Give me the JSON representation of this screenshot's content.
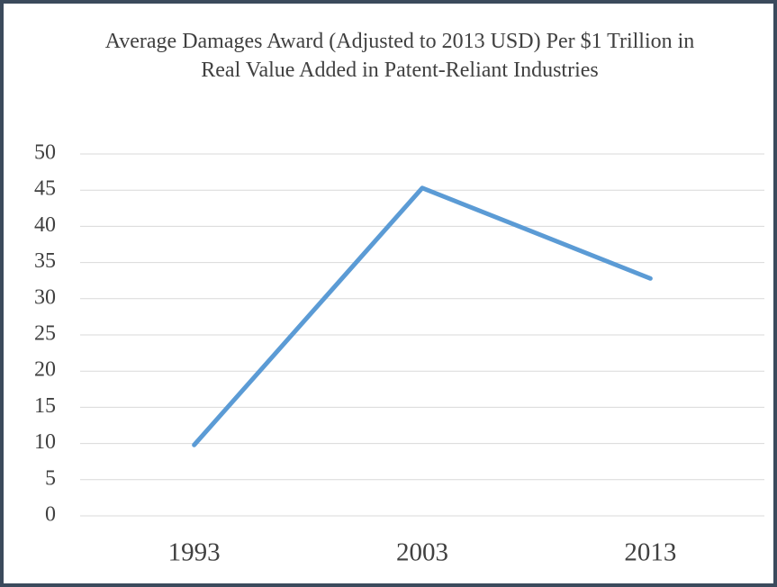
{
  "chart_data": {
    "type": "line",
    "title": "Average Damages Award (Adjusted to 2013 USD) Per $1 Trillion in Real Value Added in Patent-Reliant Industries",
    "categories": [
      "1993",
      "2003",
      "2013"
    ],
    "values": [
      9.8,
      45.3,
      32.8
    ],
    "color": "#5b9bd5",
    "ylim": [
      0,
      50
    ],
    "yticks": [
      0,
      5,
      10,
      15,
      20,
      25,
      30,
      35,
      40,
      45,
      50
    ],
    "grid": true
  }
}
